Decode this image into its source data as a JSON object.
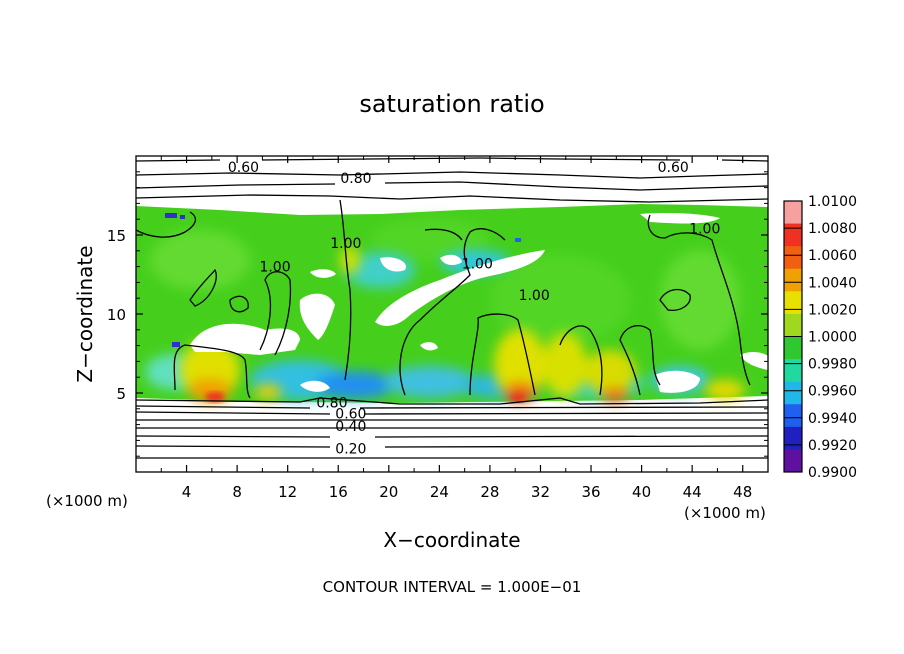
{
  "chart_data": {
    "type": "heatmap",
    "title": "saturation ratio",
    "xlabel": "X−coordinate",
    "ylabel": "Z−coordinate",
    "x_unit_left": "(×1000 m)",
    "x_unit_right": "(×1000 m)",
    "footer": "CONTOUR INTERVAL =  1.000E−01",
    "xlim": [
      0,
      50
    ],
    "ylim": [
      0,
      20
    ],
    "x_ticks": [
      4,
      8,
      12,
      16,
      20,
      24,
      28,
      32,
      36,
      40,
      44,
      48
    ],
    "y_ticks": [
      5,
      10,
      15
    ],
    "grid": false,
    "colorbar": {
      "min": 0.99,
      "max": 1.01,
      "labels": [
        "1.0100",
        "1.0080",
        "1.0060",
        "1.0040",
        "1.0020",
        "1.0000",
        "0.9980",
        "0.9960",
        "0.9940",
        "0.9920",
        "0.9900"
      ],
      "colors": [
        "#f7a0a0",
        "#f03020",
        "#f06010",
        "#f0a000",
        "#e8e000",
        "#a0d820",
        "#30c830",
        "#20d8a0",
        "#20b8e8",
        "#2060f0",
        "#2020c0",
        "#6010a0"
      ]
    },
    "contour_labels": [
      {
        "text": "0.60",
        "x": 8.5,
        "y": 19.3
      },
      {
        "text": "0.60",
        "x": 42.5,
        "y": 19.3
      },
      {
        "text": "0.80",
        "x": 17.4,
        "y": 18.6
      },
      {
        "text": "1.00",
        "x": 16.6,
        "y": 14.5
      },
      {
        "text": "1.00",
        "x": 11.0,
        "y": 13.0
      },
      {
        "text": "1.00",
        "x": 27.0,
        "y": 13.2
      },
      {
        "text": "1.00",
        "x": 31.5,
        "y": 11.2
      },
      {
        "text": "1.00",
        "x": 45.0,
        "y": 15.4
      },
      {
        "text": "0.80",
        "x": 15.5,
        "y": 4.4
      },
      {
        "text": "0.60",
        "x": 17.0,
        "y": 3.7
      },
      {
        "text": "0.40",
        "x": 17.0,
        "y": 2.9
      },
      {
        "text": "0.20",
        "x": 17.0,
        "y": 1.5
      }
    ]
  }
}
